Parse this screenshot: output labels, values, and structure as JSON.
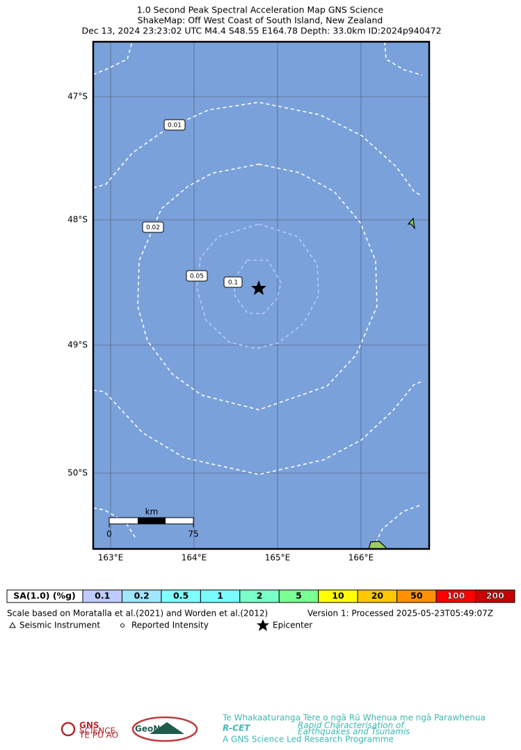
{
  "header": {
    "lines": [
      "1.0 Second Peak Spectral Acceleration Map GNS Science",
      "ShakeMap: Off West Coast of South Island, New Zealand",
      "Dec 13, 2024 23:23:02 UTC M4.4 S48.55 E164.78 Depth: 33.0km ID:2024p940472"
    ]
  },
  "map": {
    "lat_labels": [
      "47°S",
      "48°S",
      "49°S",
      "50°S"
    ],
    "lon_labels": [
      "163°E",
      "164°E",
      "165°E",
      "166°E"
    ],
    "contour_labels": [
      "0.01",
      "0.02",
      "0.05",
      "0.1"
    ],
    "scale": {
      "unit": "km",
      "labels": [
        "0",
        "75"
      ]
    }
  },
  "legend": {
    "title": "SA(1.0) (%g)",
    "items": [
      {
        "label": "0.1",
        "color": "#bfccff"
      },
      {
        "label": "0.2",
        "color": "#a0e6ff"
      },
      {
        "label": "0.5",
        "color": "#80ffff"
      },
      {
        "label": "1",
        "color": "#7afcff"
      },
      {
        "label": "2",
        "color": "#7affc8"
      },
      {
        "label": "5",
        "color": "#7aff93"
      },
      {
        "label": "10",
        "color": "#ffff00"
      },
      {
        "label": "20",
        "color": "#ffc800"
      },
      {
        "label": "50",
        "color": "#ff9100"
      },
      {
        "label": "100",
        "color": "#ff0000"
      },
      {
        "label": "200",
        "color": "#c80000"
      }
    ]
  },
  "footer": {
    "scale_note": "Scale based on Moratalla et al.(2021) and Worden et al.(2012)",
    "version": "Version 1: Processed 2025-05-23T05:49:07Z",
    "symbols": [
      "Seismic Instrument",
      "Reported Intensity",
      "Epicenter"
    ]
  },
  "logos": {
    "gns": [
      "GNS",
      "SCIENCE",
      "TE PŪ AO"
    ],
    "geonet": "GeoNet",
    "rcet": [
      "Te Whakaaturanga Tere o ngā Rū Whenua me ngā Parawhenua",
      "R-CET",
      "Rapid Characterisation of",
      "Earthquakes and Tsunamis",
      "A GNS Science Led Research Programme"
    ]
  }
}
